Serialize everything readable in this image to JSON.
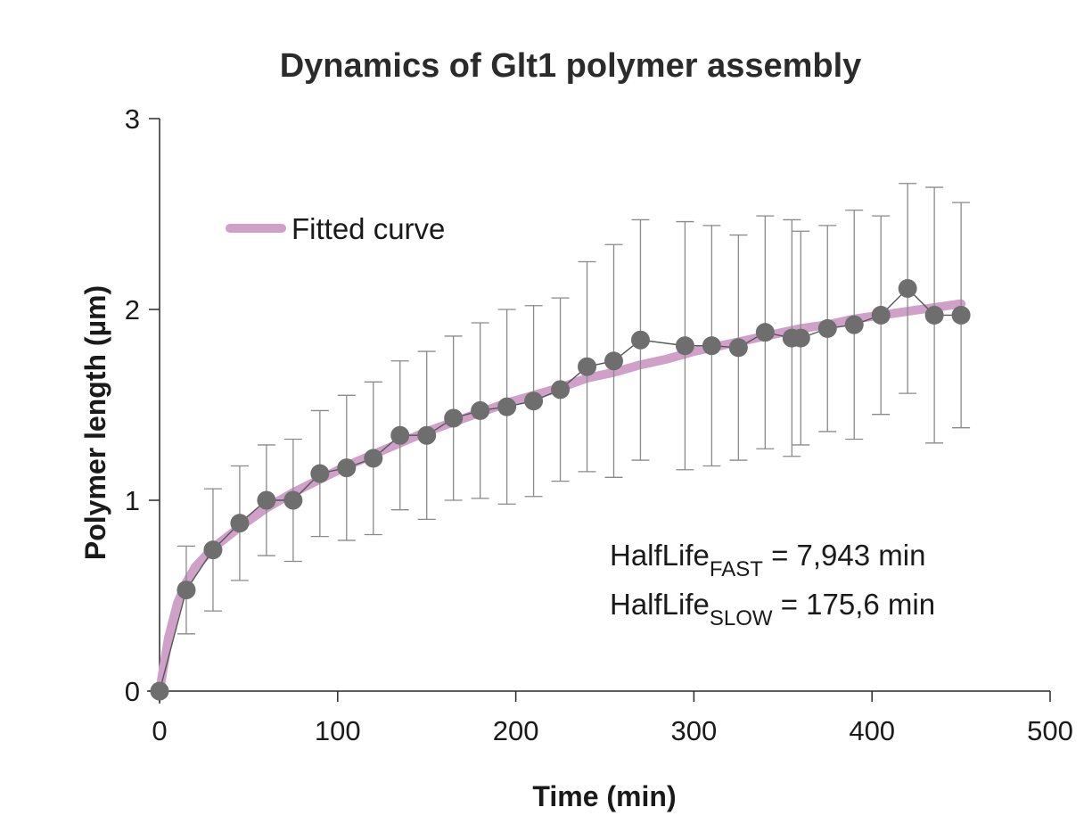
{
  "chart_data": {
    "type": "scatter",
    "title": "Dynamics of Glt1 polymer assembly",
    "xlabel": "Time (min)",
    "ylabel": "Polymer length (µm)",
    "xlim": [
      0,
      500
    ],
    "ylim": [
      0,
      3
    ],
    "xticks": [
      0,
      100,
      200,
      300,
      400,
      500
    ],
    "yticks": [
      0,
      1,
      2,
      3
    ],
    "grid": false,
    "legend": {
      "position": "top-left",
      "entries": [
        "Fitted curve"
      ]
    },
    "colors": {
      "fit": "#cfa0c8",
      "points": "#6e6e6e",
      "errorbars": "#8a8a8a",
      "axis": "#2a2a2a"
    },
    "series": [
      {
        "type": "line+markers",
        "x": [
          0,
          15,
          30,
          45,
          60,
          75,
          90,
          105,
          120,
          135,
          150,
          165,
          180,
          195,
          210,
          225,
          240,
          255,
          270,
          295,
          310,
          325,
          340,
          355,
          360,
          375,
          390,
          405,
          420,
          435,
          450
        ],
        "y": [
          0,
          0.53,
          0.74,
          0.88,
          1.0,
          1.0,
          1.14,
          1.17,
          1.22,
          1.34,
          1.34,
          1.43,
          1.47,
          1.49,
          1.52,
          1.58,
          1.7,
          1.73,
          1.84,
          1.81,
          1.81,
          1.8,
          1.88,
          1.85,
          1.85,
          1.9,
          1.92,
          1.97,
          2.11,
          1.97,
          1.97
        ],
        "err": [
          0,
          0.23,
          0.32,
          0.3,
          0.29,
          0.32,
          0.33,
          0.38,
          0.4,
          0.39,
          0.44,
          0.43,
          0.46,
          0.51,
          0.5,
          0.48,
          0.55,
          0.61,
          0.63,
          0.65,
          0.63,
          0.59,
          0.61,
          0.62,
          0.56,
          0.54,
          0.6,
          0.52,
          0.55,
          0.67,
          0.59
        ]
      },
      {
        "name": "Fitted curve",
        "type": "line",
        "x": [
          0,
          5,
          10,
          15,
          20,
          30,
          45,
          60,
          75,
          90,
          105,
          120,
          135,
          150,
          165,
          180,
          195,
          210,
          225,
          240,
          255,
          270,
          285,
          300,
          315,
          330,
          345,
          360,
          375,
          390,
          405,
          420,
          435,
          450
        ],
        "y": [
          0,
          0.28,
          0.46,
          0.57,
          0.65,
          0.75,
          0.86,
          0.96,
          1.04,
          1.11,
          1.18,
          1.24,
          1.3,
          1.36,
          1.41,
          1.46,
          1.51,
          1.55,
          1.59,
          1.64,
          1.67,
          1.71,
          1.74,
          1.78,
          1.81,
          1.84,
          1.87,
          1.9,
          1.92,
          1.95,
          1.97,
          1.99,
          2.01,
          2.03
        ]
      }
    ],
    "annotations": [
      {
        "text": "HalfLife",
        "subscript": "FAST",
        "suffix": " = 7,943 min"
      },
      {
        "text": "HalfLife",
        "subscript": "SLOW",
        "suffix": " = 175,6 min"
      }
    ]
  }
}
